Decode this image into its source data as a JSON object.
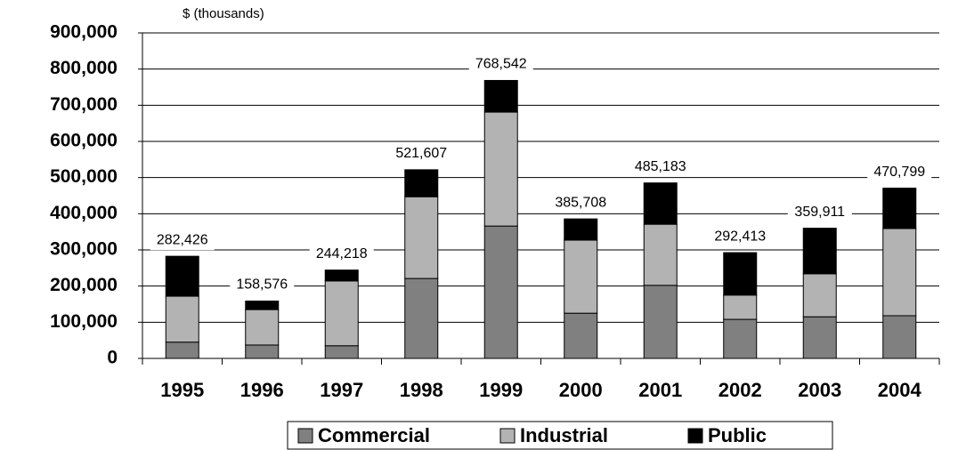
{
  "chart_data": {
    "type": "stacked_bar",
    "y_axis_label": "$ (thousands)",
    "categories": [
      "1995",
      "1996",
      "1997",
      "1998",
      "1999",
      "2000",
      "2001",
      "2002",
      "2003",
      "2004"
    ],
    "series": [
      {
        "name": "Commercial",
        "color": "#808080",
        "values": [
          45000,
          37000,
          35000,
          221000,
          366000,
          125000,
          202000,
          108000,
          115000,
          118000
        ]
      },
      {
        "name": "Industrial",
        "color": "#b3b3b3",
        "values": [
          127000,
          98000,
          179000,
          226000,
          315000,
          202000,
          169000,
          67000,
          119000,
          241000
        ]
      },
      {
        "name": "Public",
        "color": "#000000",
        "values": [
          110426,
          23576,
          30218,
          74607,
          87542,
          58708,
          114183,
          117413,
          125911,
          111799
        ]
      }
    ],
    "totals": [
      282426,
      158576,
      244218,
      521607,
      768542,
      385708,
      485183,
      292413,
      359911,
      470799
    ],
    "total_labels": [
      "282,426",
      "158,576",
      "244,218",
      "521,607",
      "768,542",
      "385,708",
      "485,183",
      "292,413",
      "359,911",
      "470,799"
    ],
    "ylim": [
      0,
      900000
    ],
    "yticks": [
      0,
      {
        "value": 100000,
        "label": "100,000"
      },
      {
        "value": 200000,
        "label": "200,000"
      },
      {
        "value": 300000,
        "label": "300,000"
      },
      {
        "value": 400000,
        "label": "400,000"
      },
      {
        "value": 500000,
        "label": "500,000"
      },
      {
        "value": 600000,
        "label": "600,000"
      },
      {
        "value": 700000,
        "label": "700,000"
      },
      {
        "value": 800000,
        "label": "800,000"
      },
      {
        "value": 900000,
        "label": "900,000"
      }
    ],
    "grid": true
  }
}
